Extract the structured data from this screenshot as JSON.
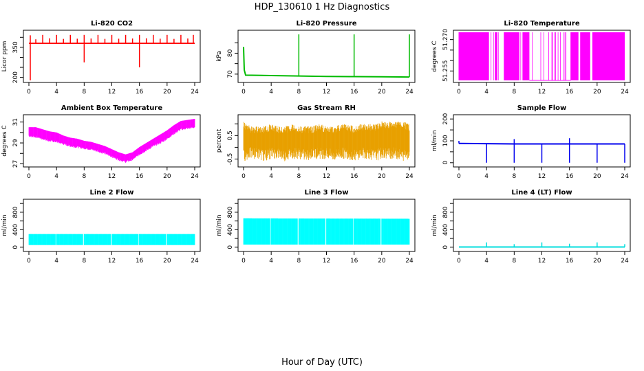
{
  "figure": {
    "title": "HDP_130610  1 Hz Diagnostics",
    "xlabel": "Hour of Day (UTC)"
  },
  "chart_data": [
    {
      "type": "line",
      "title": "Li-820 CO2",
      "ylabel": "Licor ppm",
      "color": "#ff0000",
      "xlim": [
        0,
        24
      ],
      "xticks": [
        0,
        4,
        8,
        12,
        16,
        20,
        24
      ],
      "ylim": [
        185,
        425
      ],
      "yticks": [
        200,
        250,
        300,
        350,
        400
      ],
      "ytick_labels": [
        "200",
        "",
        "",
        "350",
        ""
      ],
      "series": [
        {
          "name": "",
          "x": [
            0,
            1,
            2,
            3,
            4,
            5,
            6,
            7,
            8,
            9,
            10,
            11,
            12,
            13,
            14,
            15,
            16,
            17,
            18,
            19,
            20,
            21,
            22,
            23,
            24
          ],
          "y": [
            370,
            370,
            370,
            370,
            370,
            370,
            370,
            370,
            370,
            370,
            370,
            370,
            370,
            370,
            370,
            370,
            370,
            370,
            370,
            370,
            370,
            370,
            370,
            370,
            370
          ]
        }
      ],
      "spikes_up": [
        0.2,
        1.0,
        2.0,
        3.0,
        4.0,
        5.0,
        6.0,
        7.0,
        8.0,
        9.0,
        10.0,
        11.0,
        12.0,
        13.0,
        14.0,
        15.0,
        16.0,
        17.0,
        18.0,
        19.0,
        20.0,
        21.0,
        22.0,
        23.0,
        23.8
      ],
      "spike_up_to": [
        410,
        390,
        412,
        395,
        412,
        392,
        412,
        393,
        412,
        394,
        412,
        392,
        412,
        393,
        412,
        394,
        412,
        395,
        412,
        393,
        412,
        392,
        412,
        394,
        412
      ],
      "spikes_down": [
        0.2,
        8.0,
        16.0
      ],
      "spike_down_to": [
        185,
        275,
        250
      ]
    },
    {
      "type": "line",
      "title": "Li-820 Pressure",
      "ylabel": "kPa",
      "color": "#00bb00",
      "xlim": [
        0,
        24
      ],
      "xticks": [
        0,
        4,
        8,
        12,
        16,
        20,
        24
      ],
      "ylim": [
        67,
        90
      ],
      "yticks": [
        70,
        75,
        80,
        85
      ],
      "ytick_labels": [
        "70",
        "",
        "80",
        ""
      ],
      "series": [
        {
          "name": "",
          "x": [
            0,
            0.1,
            0.3,
            4,
            8,
            12,
            16,
            20,
            24
          ],
          "y": [
            83,
            72,
            69.5,
            69.3,
            69.1,
            68.9,
            68.8,
            68.7,
            68.6
          ]
        }
      ],
      "spikes_up": [
        8.0,
        16.0,
        24.0
      ],
      "spike_up_to": [
        89,
        89,
        89
      ]
    },
    {
      "type": "line",
      "title": "Li-820 Temperature",
      "ylabel": "degrees C",
      "color": "#ff00ff",
      "xlim": [
        0,
        24
      ],
      "xticks": [
        0,
        4,
        8,
        12,
        16,
        20,
        24
      ],
      "ylim": [
        51.2505,
        51.2735
      ],
      "yticks": [
        51.255,
        51.26,
        51.265,
        51.27
      ],
      "ytick_labels": [
        "51.255",
        "",
        "",
        "51.270"
      ],
      "band_low": 51.2505,
      "band_high": 51.2735,
      "gaps": [
        [
          4.3,
          5.2
        ],
        [
          5.5,
          6.5
        ],
        [
          8.7,
          9.2
        ],
        [
          10.2,
          16.2
        ],
        [
          17.3,
          17.6
        ],
        [
          19.0,
          19.4
        ]
      ]
    },
    {
      "type": "area",
      "title": "Ambient Box Temperature",
      "ylabel": "degrees C",
      "color": "#ff00ff",
      "xlim": [
        0,
        24
      ],
      "xticks": [
        0,
        4,
        8,
        12,
        16,
        20,
        24
      ],
      "ylim": [
        26.9,
        31.5
      ],
      "yticks": [
        27,
        28,
        29,
        30,
        31
      ],
      "ytick_labels": [
        "27",
        "",
        "29",
        "",
        "31"
      ],
      "series": [
        {
          "name": "",
          "x": [
            0,
            1,
            2,
            3,
            4,
            5,
            6,
            7,
            8,
            9,
            10,
            11,
            12,
            13,
            14,
            15,
            16,
            17,
            18,
            19,
            20,
            21,
            22,
            23,
            24
          ],
          "y_low": [
            29.5,
            29.5,
            29.3,
            29.1,
            29.0,
            28.8,
            28.6,
            28.5,
            28.4,
            28.3,
            28.1,
            27.9,
            27.6,
            27.3,
            27.1,
            27.3,
            27.8,
            28.2,
            28.6,
            28.9,
            29.3,
            29.8,
            30.2,
            30.3,
            30.4
          ],
          "y_high": [
            30.5,
            30.5,
            30.3,
            30.1,
            30.0,
            29.7,
            29.5,
            29.4,
            29.2,
            29.1,
            28.9,
            28.7,
            28.4,
            28.1,
            27.9,
            28.1,
            28.6,
            29.0,
            29.4,
            29.8,
            30.2,
            30.7,
            31.1,
            31.2,
            31.3
          ]
        }
      ]
    },
    {
      "type": "area",
      "title": "Gas Stream RH",
      "ylabel": "percent",
      "color": "#e8a000",
      "xlim": [
        0,
        24
      ],
      "xticks": [
        0,
        4,
        8,
        12,
        16,
        20,
        24
      ],
      "ylim": [
        -0.75,
        1.3
      ],
      "yticks": [
        -0.5,
        0,
        0.5,
        1.0
      ],
      "ytick_labels": [
        "-0.5",
        "",
        "0.5",
        ""
      ],
      "series": [
        {
          "name": "",
          "x": [
            0,
            1,
            2,
            3,
            4,
            5,
            6,
            7,
            8,
            9,
            10,
            11,
            12,
            13,
            14,
            15,
            16,
            17,
            18,
            19,
            20,
            21,
            22,
            23,
            24
          ],
          "y_low": [
            -0.6,
            -0.5,
            -0.5,
            -0.6,
            -0.5,
            -0.5,
            -0.6,
            -0.5,
            -0.5,
            -0.6,
            -0.5,
            -0.5,
            -0.5,
            -0.6,
            -0.5,
            -0.5,
            -0.6,
            -0.5,
            -0.5,
            -0.6,
            -0.5,
            -0.5,
            -0.5,
            -0.6,
            -0.5
          ],
          "y_high": [
            1.1,
            0.9,
            0.9,
            0.9,
            1.0,
            0.9,
            0.9,
            1.0,
            0.9,
            0.9,
            0.9,
            1.0,
            0.9,
            0.9,
            1.0,
            1.0,
            0.9,
            1.0,
            1.0,
            1.0,
            1.1,
            1.1,
            1.1,
            1.1,
            1.0
          ]
        }
      ]
    },
    {
      "type": "line",
      "title": "Sample Flow",
      "ylabel": "ml/min",
      "color": "#0000ee",
      "xlim": [
        0,
        24
      ],
      "xticks": [
        0,
        4,
        8,
        12,
        16,
        20,
        24
      ],
      "ylim": [
        -10,
        210
      ],
      "yticks": [
        0,
        50,
        100,
        150,
        200
      ],
      "ytick_labels": [
        "0",
        "",
        "100",
        "",
        "200"
      ],
      "series": [
        {
          "name": "",
          "x": [
            0,
            4,
            8,
            12,
            16,
            20,
            24
          ],
          "y": [
            88,
            87,
            86,
            86,
            86,
            86,
            86
          ]
        }
      ],
      "spikes_down": [
        4.0,
        8.0,
        12.0,
        16.0,
        20.0,
        24.0
      ],
      "spike_down_to": [
        0,
        0,
        0,
        0,
        0,
        0
      ],
      "spikes_up": [
        0.0,
        8.0,
        16.0
      ],
      "spike_up_to": [
        100,
        108,
        112
      ]
    },
    {
      "type": "area",
      "title": "Line 2 Flow",
      "ylabel": "ml/min",
      "color": "#00ffff",
      "xlim": [
        0,
        24
      ],
      "xticks": [
        0,
        4,
        8,
        12,
        16,
        20,
        24
      ],
      "ylim": [
        -50,
        1050
      ],
      "yticks": [
        0,
        200,
        400,
        600,
        800,
        1000
      ],
      "ytick_labels": [
        "0",
        "",
        "400",
        "",
        "800",
        ""
      ],
      "series": [
        {
          "name": "",
          "x": [
            0,
            24
          ],
          "y_low": [
            50,
            50
          ],
          "y_high": [
            300,
            300
          ]
        }
      ],
      "gaps_at": [
        3.9,
        7.9,
        11.9,
        15.9,
        19.9
      ]
    },
    {
      "type": "area",
      "title": "Line 3 Flow",
      "ylabel": "ml/min",
      "color": "#00ffff",
      "xlim": [
        0,
        24
      ],
      "xticks": [
        0,
        4,
        8,
        12,
        16,
        20,
        24
      ],
      "ylim": [
        -50,
        1050
      ],
      "yticks": [
        0,
        200,
        400,
        600,
        800,
        1000
      ],
      "ytick_labels": [
        "0",
        "",
        "400",
        "",
        "800",
        ""
      ],
      "series": [
        {
          "name": "",
          "x": [
            0,
            24
          ],
          "y_low": [
            60,
            60
          ],
          "y_high": [
            660,
            650
          ]
        }
      ],
      "gaps_at": [
        3.9,
        7.9,
        11.9,
        15.9,
        19.9
      ]
    },
    {
      "type": "line",
      "title": "Line 4 (LT) Flow",
      "ylabel": "ml/min",
      "color": "#00dddd",
      "xlim": [
        0,
        24
      ],
      "xticks": [
        0,
        4,
        8,
        12,
        16,
        20,
        24
      ],
      "ylim": [
        -50,
        1050
      ],
      "yticks": [
        0,
        200,
        400,
        600,
        800,
        1000
      ],
      "ytick_labels": [
        "0",
        "",
        "400",
        "",
        "800",
        ""
      ],
      "series": [
        {
          "name": "",
          "x": [
            0,
            24
          ],
          "y": [
            5,
            5
          ]
        }
      ],
      "spikes_up": [
        4.0,
        8.0,
        12.0,
        16.0,
        20.0,
        24.0
      ],
      "spike_up_to": [
        110,
        70,
        110,
        80,
        110,
        70
      ]
    }
  ]
}
